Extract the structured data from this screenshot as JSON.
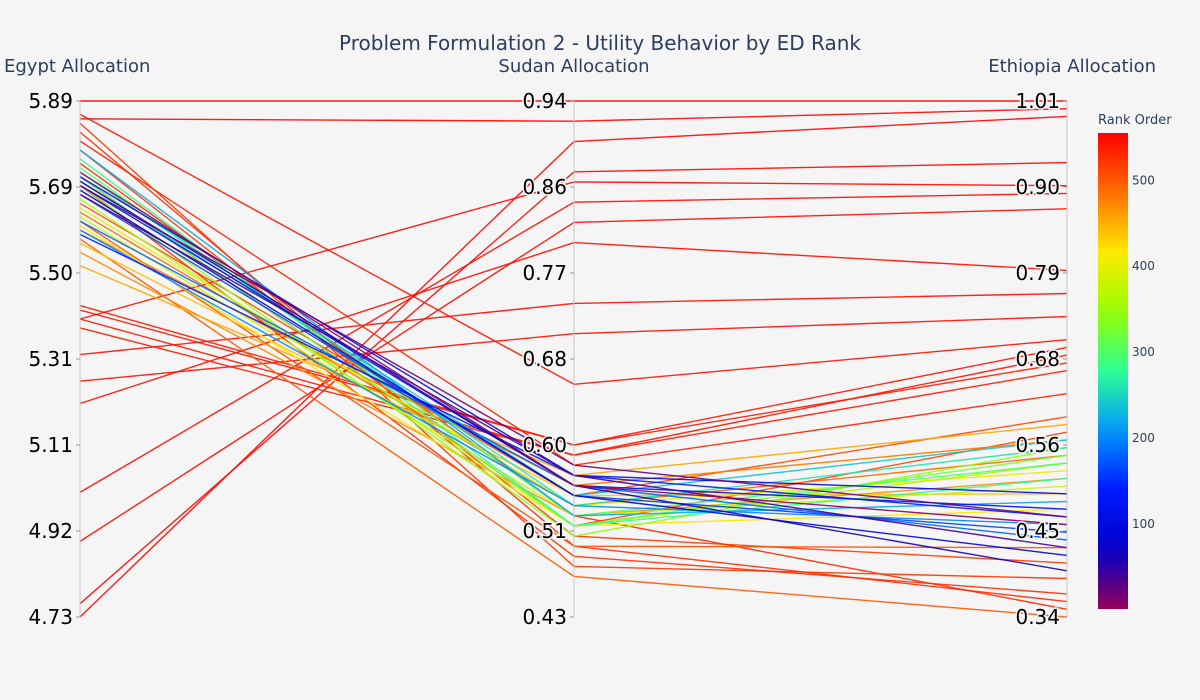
{
  "chart_data": {
    "type": "parallel_coordinates",
    "title": "Problem Formulation 2 - Utility Behavior by ED Rank",
    "dimensions": [
      {
        "label": "Egypt Allocation",
        "range": [
          4.73,
          5.89
        ],
        "ticks": [
          "5.89",
          "5.69",
          "5.50",
          "5.31",
          "5.11",
          "4.92",
          "4.73"
        ]
      },
      {
        "label": "Sudan Allocation",
        "range": [
          0.43,
          0.94
        ],
        "ticks": [
          "0.94",
          "0.86",
          "0.77",
          "0.68",
          "0.60",
          "0.51",
          "0.43"
        ]
      },
      {
        "label": "Ethiopia Allocation",
        "range": [
          0.34,
          1.01
        ],
        "ticks": [
          "1.01",
          "0.90",
          "0.79",
          "0.68",
          "0.56",
          "0.45",
          "0.34"
        ]
      }
    ],
    "colorbar": {
      "title": "Rank Order",
      "colorscale": "jet",
      "range": [
        1,
        555
      ],
      "ticks": [
        "500",
        "400",
        "300",
        "200",
        "100"
      ]
    },
    "samples": [
      {
        "values": [
          5.89,
          0.94,
          1.01
        ],
        "rank": 555
      },
      {
        "values": [
          5.85,
          0.92,
          1.0
        ],
        "rank": 553
      },
      {
        "values": [
          4.73,
          0.9,
          0.99
        ],
        "rank": 552
      },
      {
        "values": [
          4.76,
          0.87,
          0.93
        ],
        "rank": 551
      },
      {
        "values": [
          5.4,
          0.86,
          0.9
        ],
        "rank": 550
      },
      {
        "values": [
          5.01,
          0.84,
          0.89
        ],
        "rank": 549
      },
      {
        "values": [
          4.9,
          0.82,
          0.87
        ],
        "rank": 548
      },
      {
        "values": [
          5.21,
          0.8,
          0.79
        ],
        "rank": 547
      },
      {
        "values": [
          5.32,
          0.74,
          0.76
        ],
        "rank": 546
      },
      {
        "values": [
          5.26,
          0.71,
          0.73
        ],
        "rank": 545
      },
      {
        "values": [
          5.86,
          0.66,
          0.7
        ],
        "rank": 544
      },
      {
        "values": [
          5.42,
          0.6,
          0.69
        ],
        "rank": 543
      },
      {
        "values": [
          5.4,
          0.59,
          0.68
        ],
        "rank": 542
      },
      {
        "values": [
          5.43,
          0.6,
          0.67
        ],
        "rank": 540
      },
      {
        "values": [
          5.38,
          0.59,
          0.66
        ],
        "rank": 538
      },
      {
        "values": [
          5.8,
          0.58,
          0.63
        ],
        "rank": 535
      },
      {
        "values": [
          5.75,
          0.53,
          0.35
        ],
        "rank": 530
      },
      {
        "values": [
          5.82,
          0.5,
          0.36
        ],
        "rank": 528
      },
      {
        "values": [
          5.7,
          0.49,
          0.37
        ],
        "rank": 525
      },
      {
        "values": [
          5.84,
          0.48,
          0.39
        ],
        "rank": 522
      },
      {
        "values": [
          5.78,
          0.51,
          0.41
        ],
        "rank": 520
      },
      {
        "values": [
          5.72,
          0.52,
          0.58
        ],
        "rank": 515
      },
      {
        "values": [
          5.66,
          0.55,
          0.6
        ],
        "rank": 510
      },
      {
        "values": [
          5.62,
          0.5,
          0.43
        ],
        "rank": 505
      },
      {
        "values": [
          5.58,
          0.47,
          0.34
        ],
        "rank": 500
      },
      {
        "values": [
          5.64,
          0.54,
          0.55
        ],
        "rank": 490
      },
      {
        "values": [
          5.6,
          0.56,
          0.57
        ],
        "rank": 480
      },
      {
        "values": [
          5.55,
          0.53,
          0.52
        ],
        "rank": 470
      },
      {
        "values": [
          5.52,
          0.57,
          0.59
        ],
        "rank": 455
      },
      {
        "values": [
          5.57,
          0.55,
          0.5
        ],
        "rank": 440
      },
      {
        "values": [
          5.61,
          0.52,
          0.48
        ],
        "rank": 420
      },
      {
        "values": [
          5.65,
          0.54,
          0.53
        ],
        "rank": 400
      },
      {
        "values": [
          5.63,
          0.53,
          0.51
        ],
        "rank": 380
      },
      {
        "values": [
          5.67,
          0.52,
          0.54
        ],
        "rank": 360
      },
      {
        "values": [
          5.7,
          0.51,
          0.56
        ],
        "rank": 340
      },
      {
        "values": [
          5.72,
          0.52,
          0.55
        ],
        "rank": 320
      },
      {
        "values": [
          5.74,
          0.53,
          0.54
        ],
        "rank": 300
      },
      {
        "values": [
          5.76,
          0.52,
          0.52
        ],
        "rank": 280
      },
      {
        "values": [
          5.73,
          0.54,
          0.56
        ],
        "rank": 260
      },
      {
        "values": [
          5.71,
          0.55,
          0.57
        ],
        "rank": 240
      },
      {
        "values": [
          5.78,
          0.53,
          0.49
        ],
        "rank": 220
      },
      {
        "values": [
          5.6,
          0.54,
          0.46
        ],
        "rank": 200
      },
      {
        "values": [
          5.62,
          0.56,
          0.44
        ],
        "rank": 180
      },
      {
        "values": [
          5.68,
          0.55,
          0.45
        ],
        "rank": 160
      },
      {
        "values": [
          5.59,
          0.57,
          0.47
        ],
        "rank": 140
      },
      {
        "values": [
          5.7,
          0.56,
          0.48
        ],
        "rank": 120
      },
      {
        "values": [
          5.72,
          0.57,
          0.5
        ],
        "rank": 100
      },
      {
        "values": [
          5.69,
          0.55,
          0.42
        ],
        "rank": 80
      },
      {
        "values": [
          5.71,
          0.56,
          0.4
        ],
        "rank": 60
      },
      {
        "values": [
          5.68,
          0.57,
          0.43
        ],
        "rank": 40
      },
      {
        "values": [
          5.7,
          0.58,
          0.47
        ],
        "rank": 20
      },
      {
        "values": [
          5.73,
          0.56,
          0.46
        ],
        "rank": 5
      }
    ]
  }
}
